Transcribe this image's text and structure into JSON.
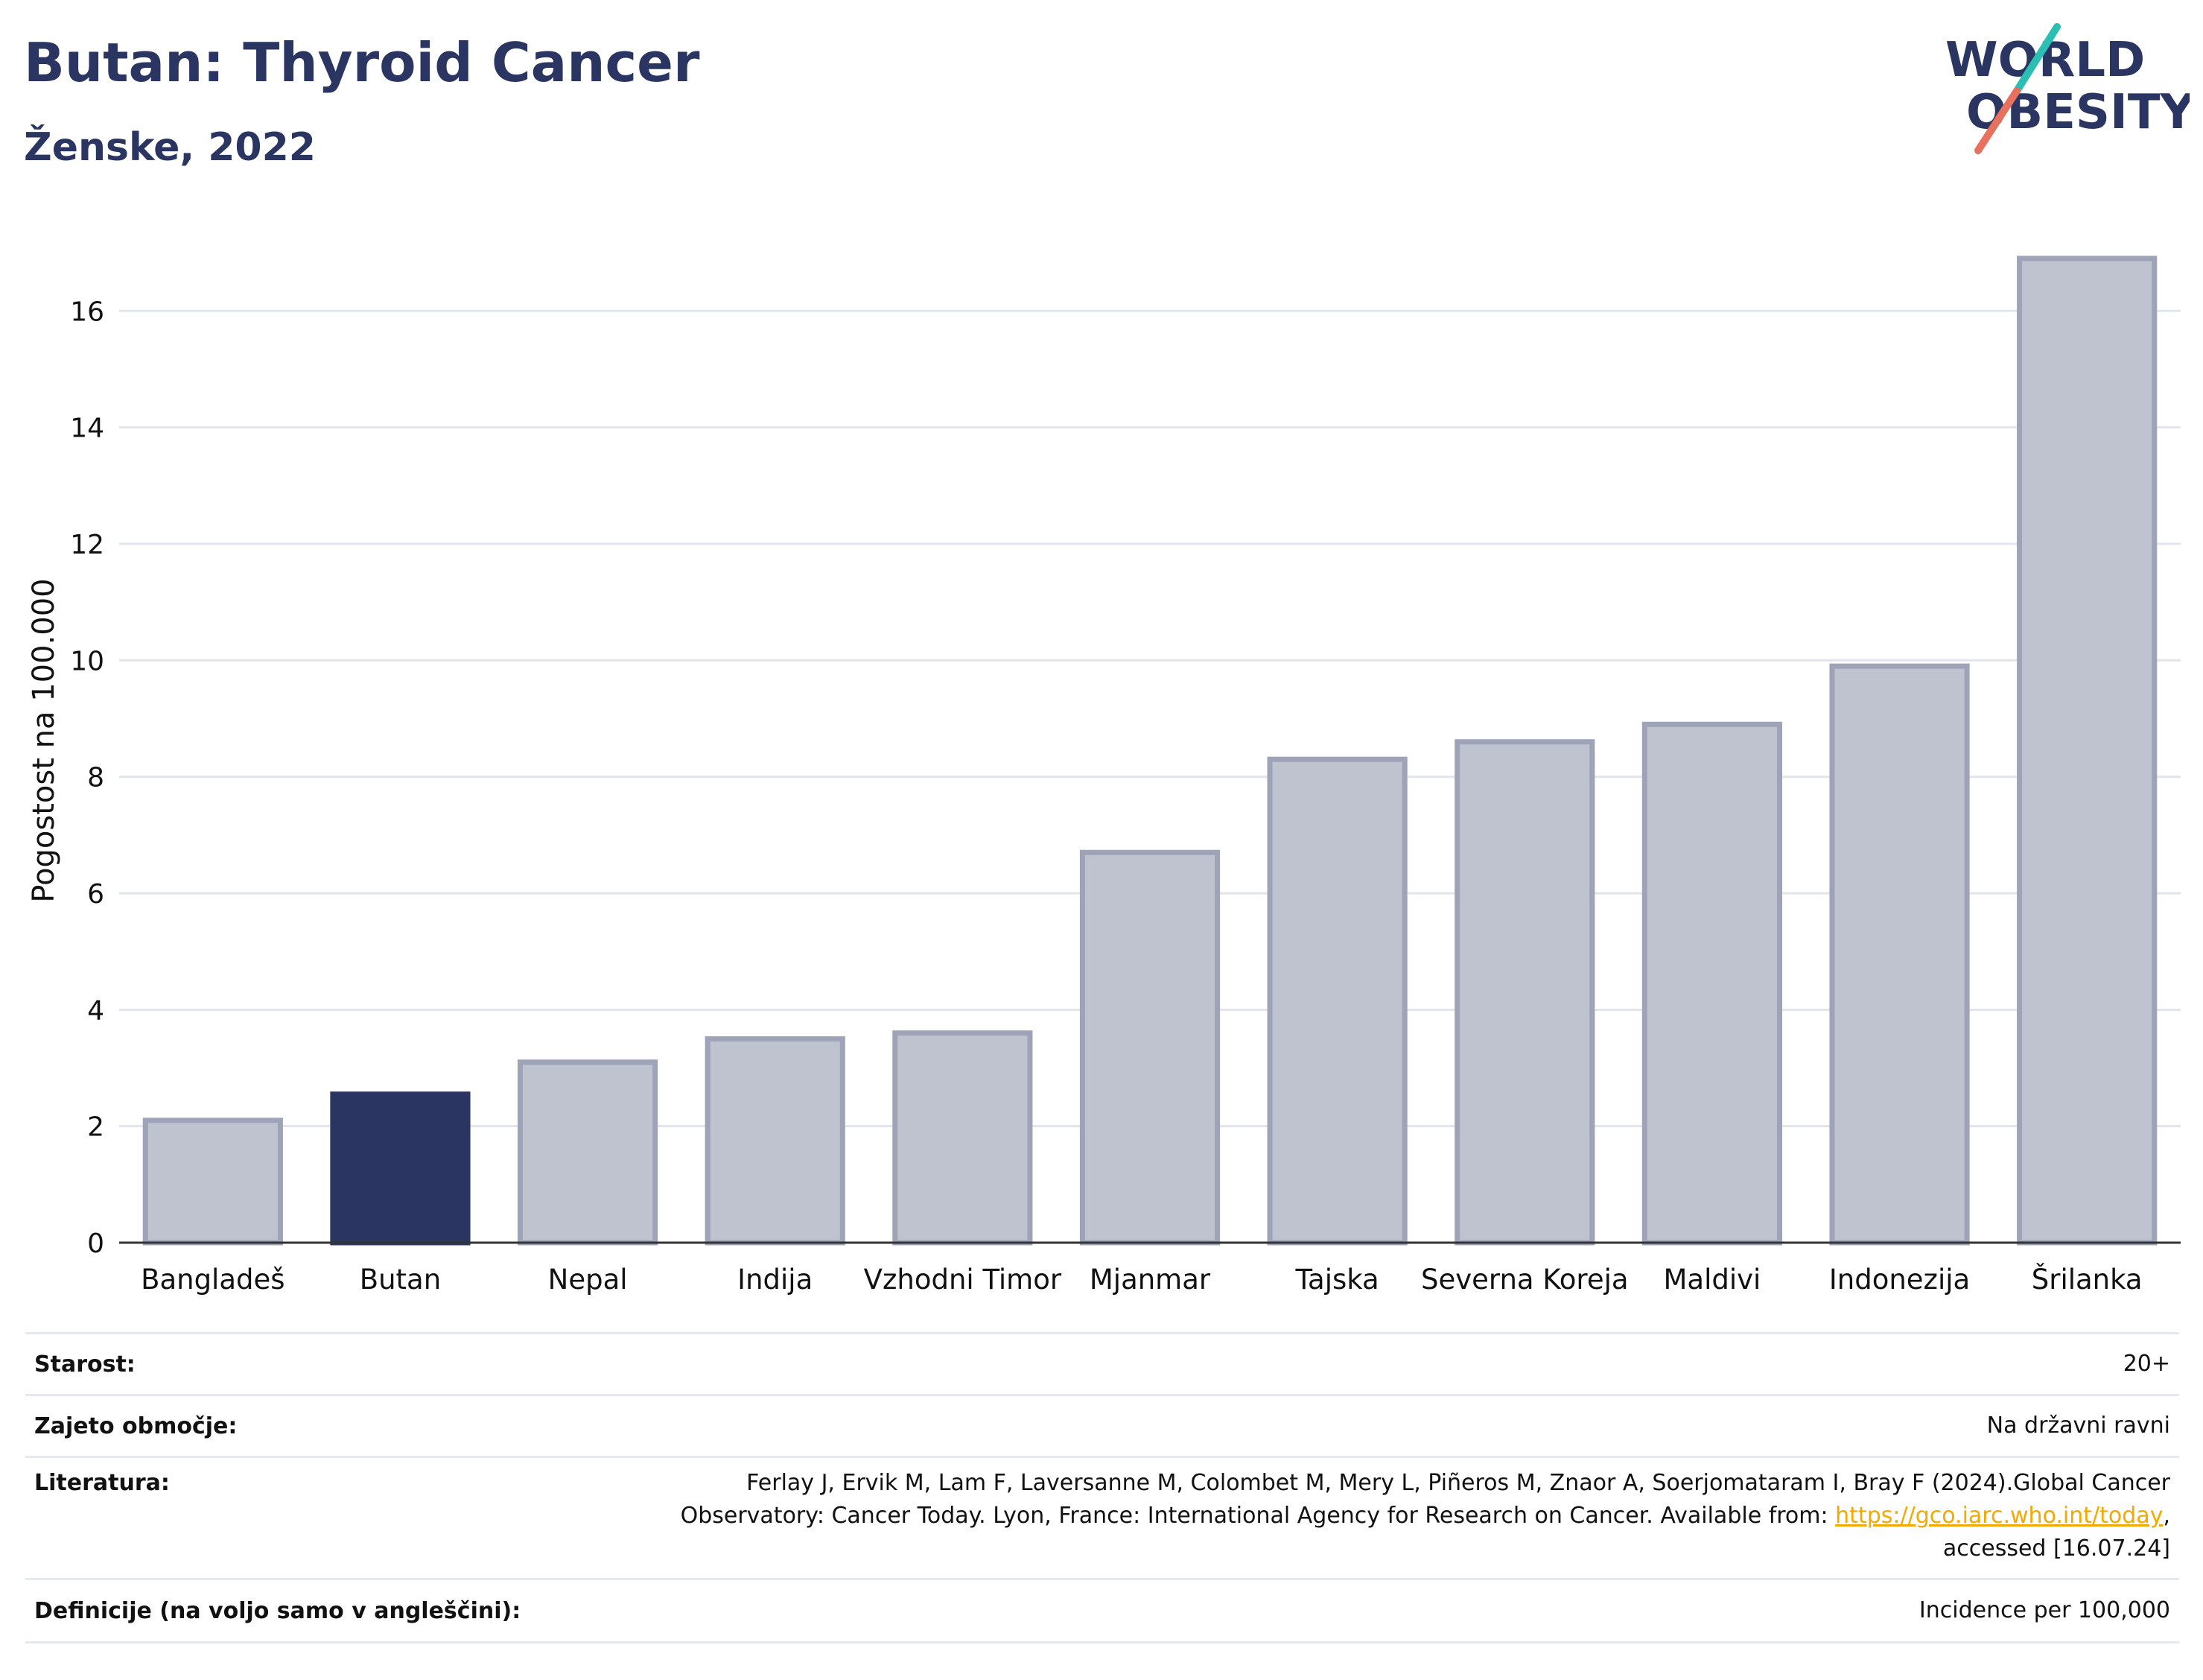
{
  "header": {
    "title": "Butan: Thyroid Cancer",
    "subtitle": "Ženske, 2022"
  },
  "logo": {
    "line1": "WORLD",
    "line2": "OBESITY",
    "colors": {
      "text": "#2a3561",
      "slash_top": "#2bbfb3",
      "slash_bottom": "#e8705f"
    }
  },
  "chart_data": {
    "type": "bar",
    "categories": [
      "Bangladeš",
      "Butan",
      "Nepal",
      "Indija",
      "Vzhodni Timor",
      "Mjanmar",
      "Tajska",
      "Severna Koreja",
      "Maldivi",
      "Indonezija",
      "Šrilanka"
    ],
    "values": [
      2.1,
      2.55,
      3.1,
      3.5,
      3.6,
      6.7,
      8.3,
      8.6,
      8.9,
      9.9,
      16.9
    ],
    "highlight": "Butan",
    "ylabel": "Pogostost na 100.000",
    "xlabel": "",
    "ylim": [
      0,
      17.5
    ],
    "yticks": [
      0,
      2,
      4,
      6,
      8,
      10,
      12,
      14,
      16
    ],
    "grid": true,
    "colors": {
      "bar": "#bfc2cf",
      "bar_edge": "#9ea3b8",
      "highlight": "#2a3561",
      "grid": "#e3e5ec",
      "axis": "#333333"
    }
  },
  "meta": {
    "rows": [
      {
        "label": "Starost:",
        "value": "20+"
      },
      {
        "label": "Zajeto območje:",
        "value": "Na državni ravni"
      },
      {
        "label": "Literatura:",
        "value_lines": [
          "Ferlay J, Ervik M, Lam F, Laversanne M, Colombet M, Mery L, Piñeros M, Znaor A, Soerjomataram I, Bray F (2024).Global Cancer",
          "Observatory: Cancer Today. Lyon, France: International Agency for Research on Cancer. Available from: ",
          "https://gco.iarc.who.int/today",
          ",",
          "accessed [16.07.24]"
        ]
      },
      {
        "label": "Definicije (na voljo samo v angleščini):",
        "value": "Incidence per 100,000"
      }
    ]
  }
}
